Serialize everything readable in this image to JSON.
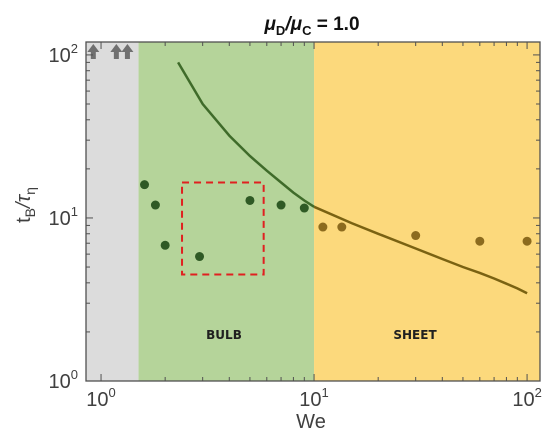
{
  "chart_data": {
    "type": "scatter",
    "title": {
      "base": "μ",
      "sub1": "D",
      "slash": "/μ",
      "sub2": "C",
      "suffix": " = 1.0"
    },
    "xlabel": "We",
    "ylabel": {
      "t": "t",
      "sub": "B",
      "slash": "/τ",
      "sub2": "η"
    },
    "x_scale": "log",
    "y_scale": "log",
    "xlim": [
      0.85,
      115
    ],
    "ylim": [
      1,
      120
    ],
    "x_ticks": [
      {
        "value": 1,
        "base": "10",
        "exp": "0"
      },
      {
        "value": 10,
        "base": "10",
        "exp": "1"
      },
      {
        "value": 100,
        "base": "10",
        "exp": "2"
      }
    ],
    "y_ticks": [
      {
        "value": 1,
        "base": "10",
        "exp": "0"
      },
      {
        "value": 10,
        "base": "10",
        "exp": "1"
      },
      {
        "value": 100,
        "base": "10",
        "exp": "2"
      }
    ],
    "regions": [
      {
        "name": "gray",
        "x_range": [
          0.85,
          1.5
        ],
        "color": "#dcdcdc"
      },
      {
        "name": "bulb",
        "label": "BULB",
        "x_range": [
          1.5,
          10
        ],
        "color": "#b5d49a"
      },
      {
        "name": "sheet",
        "label": "SHEET",
        "x_range": [
          10,
          115
        ],
        "color": "#fcd97c"
      }
    ],
    "arrows": {
      "x": [
        0.92,
        1.18,
        1.33
      ],
      "color": "#707070"
    },
    "series": [
      {
        "color": "#2f5a25",
        "points": [
          [
            1.6,
            16
          ],
          [
            1.8,
            12
          ],
          [
            2.0,
            6.8
          ],
          [
            2.9,
            5.8
          ],
          [
            5.0,
            12.8
          ],
          [
            7.0,
            12
          ],
          [
            9.0,
            11.5
          ]
        ]
      },
      {
        "color": "#8c6b1e",
        "points": [
          [
            11.0,
            8.8
          ],
          [
            13.5,
            8.8
          ],
          [
            30,
            7.8
          ],
          [
            60,
            7.2
          ],
          [
            100,
            7.2
          ]
        ]
      }
    ],
    "curve": {
      "color_bulb": "#3f6b2a",
      "color_sheet": "#7a6212",
      "points": [
        [
          2.3,
          90
        ],
        [
          3,
          50
        ],
        [
          4,
          32
        ],
        [
          5,
          24
        ],
        [
          6,
          19.5
        ],
        [
          7,
          16.5
        ],
        [
          8,
          14.3
        ],
        [
          9,
          12.8
        ],
        [
          10,
          11.7
        ],
        [
          15,
          9.3
        ],
        [
          20,
          8.0
        ],
        [
          30,
          6.5
        ],
        [
          40,
          5.6
        ],
        [
          50,
          5.0
        ],
        [
          60,
          4.6
        ],
        [
          70,
          4.25
        ],
        [
          80,
          3.95
        ],
        [
          90,
          3.7
        ],
        [
          100,
          3.45
        ]
      ]
    },
    "highlight_box": {
      "x_range": [
        2.4,
        5.8
      ],
      "y_range": [
        4.5,
        16.5
      ],
      "color": "#e02020"
    }
  }
}
